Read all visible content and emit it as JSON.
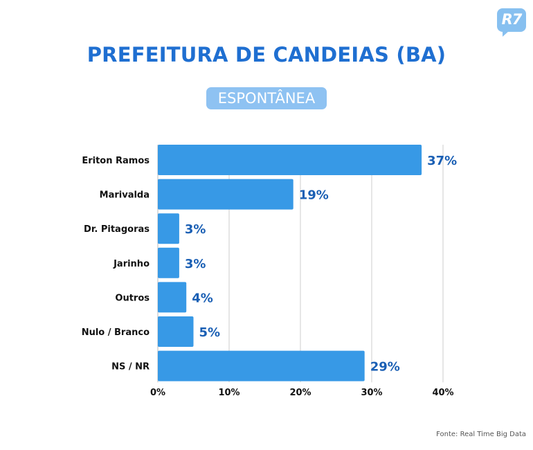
{
  "brand": {
    "logo_text": "R7",
    "logo_color": "#87c0f0"
  },
  "header": {
    "title": "PREFEITURA DE CANDEIAS (BA)",
    "badge": "ESPONTÂNEA"
  },
  "footer": {
    "source": "Fonte: Real Time Big Data"
  },
  "colors": {
    "bar": "#3799e6",
    "title": "#1f6fd1",
    "label": "#1a5fb4",
    "grid": "#cccccc"
  },
  "chart_data": {
    "type": "bar",
    "orientation": "horizontal",
    "categories": [
      "Eriton Ramos",
      "Marivalda",
      "Dr. Pitagoras",
      "Jarinho",
      "Outros",
      "Nulo / Branco",
      "NS / NR"
    ],
    "values": [
      37,
      19,
      3,
      3,
      4,
      5,
      29
    ],
    "value_labels": [
      "37%",
      "19%",
      "3%",
      "3%",
      "4%",
      "5%",
      "29%"
    ],
    "xticks": [
      "0%",
      "10%",
      "20%",
      "30%",
      "40%"
    ],
    "xlim": [
      0,
      40
    ],
    "grid": true
  }
}
